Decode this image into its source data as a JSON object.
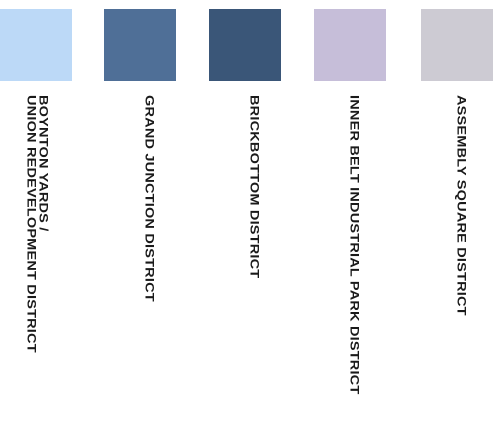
{
  "legend": {
    "items": [
      {
        "label": "BOYNTON YARDS /\nUNION REDEVELOPMENT DISTRICT",
        "color": "#bcd9f7"
      },
      {
        "label": "GRAND JUNCTION DISTRICT",
        "color": "#4f6f97"
      },
      {
        "label": "BRICKBOTTOM DISTRICT",
        "color": "#3a5678"
      },
      {
        "label": "INNER BELT INDUSTRIAL PARK DISTRICT",
        "color": "#c6bed9"
      },
      {
        "label": "ASSEMBLY SQUARE DISTRICT",
        "color": "#cdcbd3"
      }
    ]
  }
}
